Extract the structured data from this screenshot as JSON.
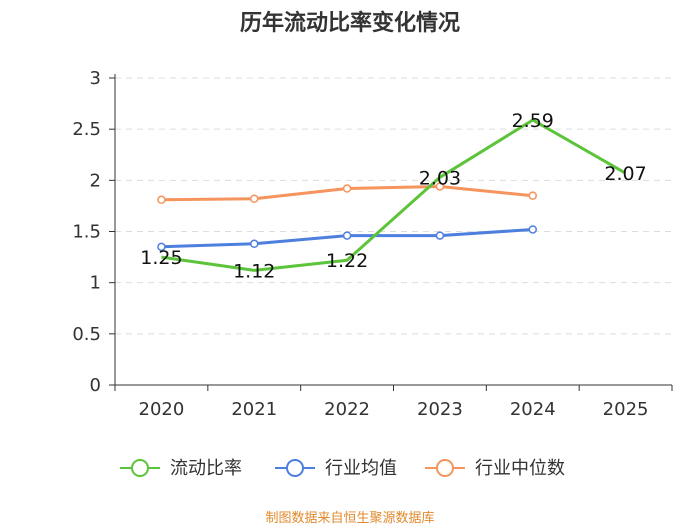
{
  "chart_data": {
    "type": "line",
    "title": "历年流动比率变化情况",
    "categories": [
      "2020",
      "2021",
      "2022",
      "2023",
      "2024",
      "2025"
    ],
    "ylim": [
      0,
      3
    ],
    "yticks": [
      "0",
      "0.5",
      "1",
      "1.5",
      "2",
      "2.5",
      "3"
    ],
    "grid": true,
    "legend_position": "bottom",
    "series": [
      {
        "name": "流动比率",
        "color": "#5cc43a",
        "values": [
          1.25,
          1.12,
          1.22,
          2.03,
          2.59,
          2.07
        ],
        "labels": [
          "1.25",
          "1.12",
          "1.22",
          "2.03",
          "2.59",
          "2.07"
        ],
        "markers": false
      },
      {
        "name": "行业均值",
        "color": "#4d7fdf",
        "values": [
          1.35,
          1.38,
          1.46,
          1.46,
          1.52,
          null
        ],
        "markers": true
      },
      {
        "name": "行业中位数",
        "color": "#f5945c",
        "values": [
          1.81,
          1.82,
          1.92,
          1.94,
          1.85,
          null
        ],
        "markers": true
      }
    ],
    "source": "制图数据来自恒生聚源数据库"
  }
}
